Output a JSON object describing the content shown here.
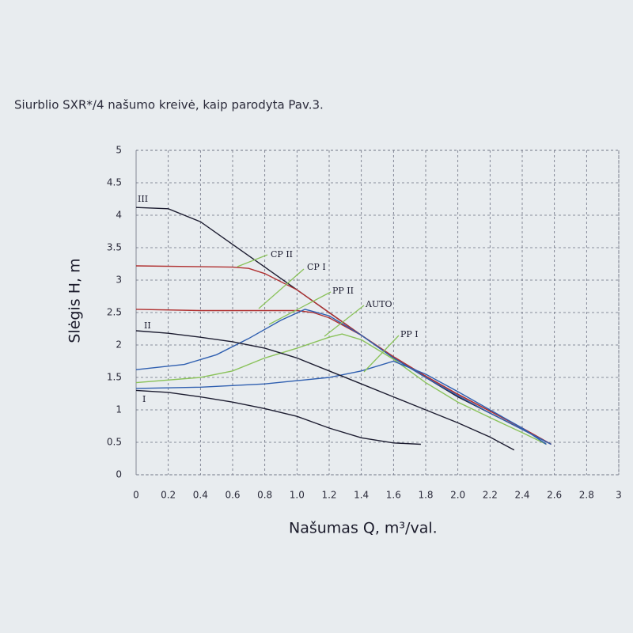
{
  "chart_data": {
    "type": "line",
    "title": "Siurblio SXR*/4 našumo kreivė, kaip parodyta Pav.3.",
    "x_label": "Našumas Q, m³/val.",
    "y_label": "Slėgis H, m",
    "xlim": [
      0,
      3
    ],
    "ylim": [
      0,
      5
    ],
    "xticks": [
      0,
      0.2,
      0.4,
      0.6,
      0.8,
      {
        "value": 1,
        "label": "1.0"
      },
      1.2,
      1.4,
      1.6,
      1.8,
      {
        "value": 2,
        "label": "2.0"
      },
      2.2,
      2.4,
      2.6,
      2.8,
      3
    ],
    "yticks": [
      0,
      0.5,
      1,
      1.5,
      2,
      2.5,
      3,
      3.5,
      4,
      4.5,
      5
    ],
    "grid": true,
    "series": [
      {
        "name": "III",
        "color": "#1c1c30",
        "x": [
          0,
          0.2,
          0.4,
          0.6,
          0.8,
          1.0,
          1.2,
          1.4,
          1.6,
          1.8,
          2.0,
          2.2,
          2.4,
          2.58
        ],
        "values": [
          4.12,
          4.1,
          3.9,
          3.55,
          3.2,
          2.85,
          2.5,
          2.15,
          1.8,
          1.5,
          1.2,
          0.95,
          0.7,
          0.47
        ]
      },
      {
        "name": "CP II",
        "color": "#b03030",
        "x": [
          0,
          0.6,
          0.7,
          0.8,
          1.0,
          1.2,
          1.4,
          1.6,
          1.8,
          2.0,
          2.2,
          2.4,
          2.58
        ],
        "values": [
          3.22,
          3.2,
          3.18,
          3.1,
          2.85,
          2.5,
          2.15,
          1.82,
          1.52,
          1.24,
          0.98,
          0.72,
          0.47
        ]
      },
      {
        "name": "CP I",
        "color": "#b03030",
        "x": [
          0,
          0.4,
          0.8,
          1.0,
          1.1,
          1.2,
          1.4,
          1.6,
          1.8,
          2.0,
          2.2,
          2.4,
          2.58
        ],
        "values": [
          2.55,
          2.53,
          2.53,
          2.53,
          2.5,
          2.42,
          2.15,
          1.82,
          1.52,
          1.24,
          0.98,
          0.72,
          0.47
        ]
      },
      {
        "name": "PP II",
        "color": "#2f5fb0",
        "x": [
          0,
          0.3,
          0.5,
          0.7,
          0.9,
          1.05,
          1.2,
          1.4,
          1.6,
          1.8,
          2.0,
          2.2,
          2.4,
          2.58
        ],
        "values": [
          1.62,
          1.7,
          1.85,
          2.1,
          2.38,
          2.55,
          2.45,
          2.15,
          1.8,
          1.5,
          1.22,
          0.95,
          0.7,
          0.47
        ]
      },
      {
        "name": "AUTO",
        "color": "#8ac25a",
        "x": [
          0,
          0.4,
          0.6,
          0.8,
          1.0,
          1.2,
          1.28,
          1.4,
          1.6,
          1.8,
          2.0,
          2.2,
          2.4,
          2.55
        ],
        "values": [
          1.42,
          1.5,
          1.6,
          1.8,
          1.95,
          2.12,
          2.17,
          2.08,
          1.78,
          1.42,
          1.12,
          0.88,
          0.65,
          0.47
        ]
      },
      {
        "name": "PP I",
        "color": "#2f5fb0",
        "x": [
          0,
          0.4,
          0.8,
          1.0,
          1.2,
          1.4,
          1.6,
          1.8,
          2.0,
          2.2,
          2.4,
          2.55
        ],
        "values": [
          1.33,
          1.35,
          1.4,
          1.45,
          1.5,
          1.6,
          1.75,
          1.55,
          1.28,
          1.0,
          0.72,
          0.47
        ]
      },
      {
        "name": "II",
        "color": "#1c1c30",
        "x": [
          0,
          0.2,
          0.4,
          0.6,
          0.8,
          1.0,
          1.2,
          1.4,
          1.6,
          1.8,
          2.0,
          2.2,
          2.35
        ],
        "values": [
          2.22,
          2.18,
          2.12,
          2.05,
          1.95,
          1.8,
          1.6,
          1.4,
          1.2,
          1.0,
          0.8,
          0.58,
          0.38
        ]
      },
      {
        "name": "I",
        "color": "#1c1c30",
        "x": [
          0,
          0.2,
          0.4,
          0.6,
          0.8,
          1.0,
          1.2,
          1.4,
          1.6,
          1.77
        ],
        "values": [
          1.3,
          1.27,
          1.2,
          1.12,
          1.02,
          0.9,
          0.72,
          0.57,
          0.49,
          0.47
        ]
      }
    ]
  }
}
